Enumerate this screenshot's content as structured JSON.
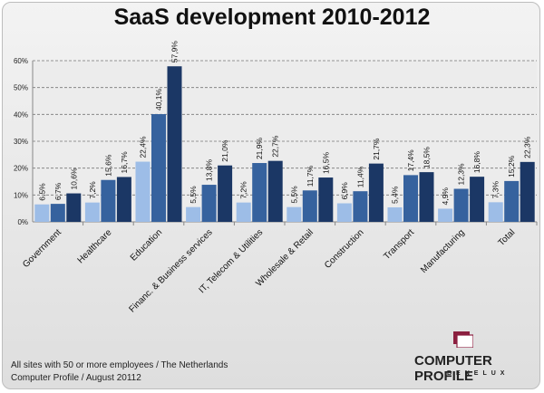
{
  "chart_data": {
    "type": "bar",
    "title": "SaaS development 2010-2012",
    "categories": [
      "Government",
      "Healthcare",
      "Education",
      "Financ. & Business services",
      "IT, Telecom & Utilities",
      "Wholesale & Retail",
      "Construction",
      "Transport",
      "Manufacturing",
      "Total"
    ],
    "series": [
      {
        "values": [
          6.5,
          7.2,
          22.4,
          5.5,
          7.2,
          5.5,
          6.9,
          5.4,
          4.9,
          7.3
        ],
        "labels": [
          "6,5%",
          "7,2%",
          "22,4%",
          "5,5%",
          "7,2%",
          "5,5%",
          "6,9%",
          "5,4%",
          "4,9%",
          "7,3%"
        ],
        "color": "#9dbde7"
      },
      {
        "values": [
          6.7,
          15.6,
          40.1,
          13.8,
          21.9,
          11.7,
          11.4,
          17.4,
          12.3,
          15.2
        ],
        "labels": [
          "6,7%",
          "15,6%",
          "40,1%",
          "13,8%",
          "21,9%",
          "11,7%",
          "11,4%",
          "17,4%",
          "12,3%",
          "15,2%"
        ],
        "color": "#36629e"
      },
      {
        "values": [
          10.6,
          16.7,
          57.9,
          21.0,
          22.7,
          16.5,
          21.7,
          18.5,
          16.8,
          22.3
        ],
        "labels": [
          "10,6%",
          "16,7%",
          "57,9%",
          "21,0%",
          "22,7%",
          "16,5%",
          "21,7%",
          "18,5%",
          "16,8%",
          "22,3%"
        ],
        "color": "#1b3765"
      }
    ],
    "yticks": [
      "0%",
      "10%",
      "20%",
      "30%",
      "40%",
      "50%",
      "60%"
    ],
    "ylim": [
      0,
      60
    ],
    "grid": true,
    "legend": "none"
  },
  "footnote": {
    "line1": "All sites with 50 or more employees / The Netherlands",
    "line2": "Computer Profile / August 20112"
  },
  "logo": {
    "name": "COMPUTER PROFILE",
    "sub": "BENELUX",
    "color": "#8b1f3f"
  }
}
